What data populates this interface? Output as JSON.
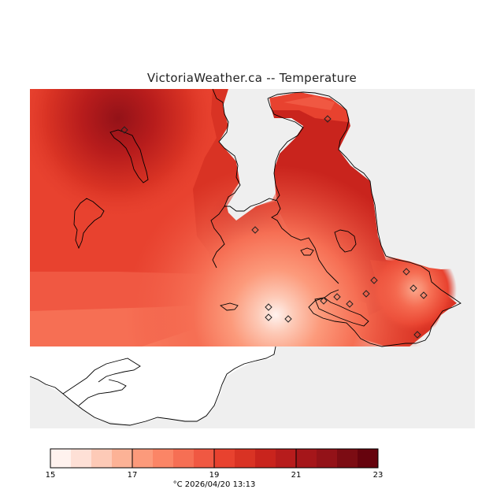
{
  "title": "VictoriaWeather.ca -- Temperature",
  "legend": {
    "ticks": [
      {
        "value": 15,
        "label": "15"
      },
      {
        "value": 17,
        "label": "17"
      },
      {
        "value": 19,
        "label": "19"
      },
      {
        "value": 21,
        "label": "21"
      },
      {
        "value": 23,
        "label": "23"
      }
    ],
    "min": 15,
    "max": 23,
    "colors": [
      "#fff2ee",
      "#fee0d6",
      "#fdcab7",
      "#fcb296",
      "#fc9a7b",
      "#fb8566",
      "#f66f54",
      "#f05842",
      "#e8422f",
      "#d93324",
      "#c9241d",
      "#b71c1c",
      "#a5161a",
      "#931218",
      "#7c0c13",
      "#66030d"
    ]
  },
  "footer": "°C  2026/04/20 13:13",
  "colors": {
    "background": "#ffffff",
    "no_data": "#efefef",
    "base": "#f05842",
    "coast": "#000000"
  }
}
